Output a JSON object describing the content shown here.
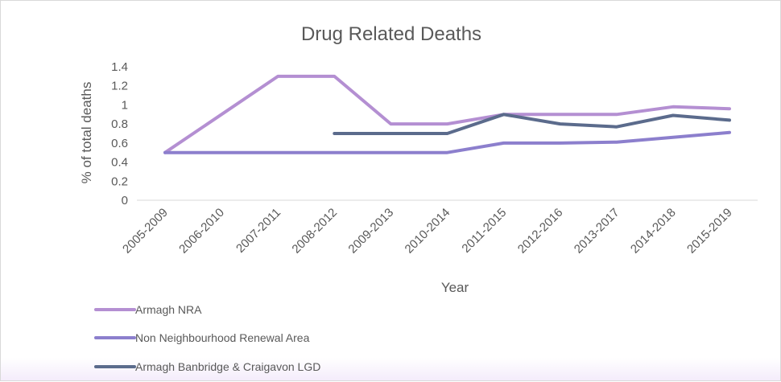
{
  "chart_data": {
    "type": "line",
    "title": "Drug Related Deaths",
    "xlabel": "Year",
    "ylabel": "% of total deaths",
    "ylim": [
      0,
      1.4
    ],
    "yticks": [
      "0",
      "0.2",
      "0.4",
      "0.6",
      "0.8",
      "1",
      "1.2",
      "1.4"
    ],
    "grid": false,
    "legend_position": "bottom-left",
    "categories": [
      "2005-2009",
      "2006-2010",
      "2007-2011",
      "2008-2012",
      "2009-2013",
      "2010-2014",
      "2011-2015",
      "2012-2016",
      "2013-2017",
      "2014-2018",
      "2015-2019"
    ],
    "series": [
      {
        "name": "Armagh NRA",
        "color": "#b48fd2",
        "values": [
          0.5,
          0.9,
          1.3,
          1.3,
          0.8,
          0.8,
          0.9,
          0.9,
          0.9,
          0.98,
          0.96
        ]
      },
      {
        "name": "Non Neighbourhood Renewal Area",
        "color": "#8c7fcd",
        "values": [
          0.5,
          0.5,
          0.5,
          0.5,
          0.5,
          0.5,
          0.6,
          0.6,
          0.61,
          0.66,
          0.71
        ]
      },
      {
        "name": "Armagh Banbridge & Craigavon LGD",
        "color": "#5b6b8c",
        "values": [
          null,
          null,
          null,
          0.7,
          0.7,
          0.7,
          0.9,
          0.8,
          0.77,
          0.89,
          0.84
        ]
      }
    ]
  }
}
